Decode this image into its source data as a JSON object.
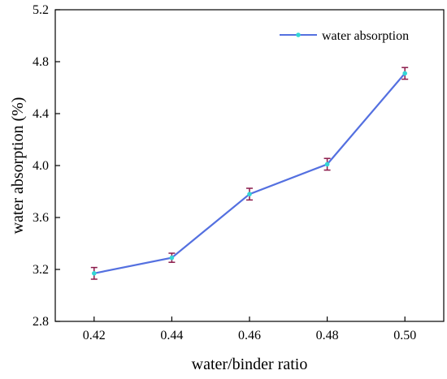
{
  "chart_data": {
    "type": "line",
    "title": "",
    "xlabel": "water/binder ratio",
    "ylabel": "water absorption (%)",
    "x": [
      0.42,
      0.44,
      0.46,
      0.48,
      0.5
    ],
    "x_ticks": [
      "0.42",
      "0.44",
      "0.46",
      "0.48",
      "0.50"
    ],
    "y_ticks": [
      "2.8",
      "3.2",
      "3.6",
      "4.0",
      "4.4",
      "4.8",
      "5.2"
    ],
    "xlim": [
      0.41,
      0.51
    ],
    "ylim": [
      2.8,
      5.2
    ],
    "grid": false,
    "legend_position": "top-right",
    "series": [
      {
        "name": "water absorption",
        "values": [
          3.17,
          3.29,
          3.78,
          4.01,
          4.71
        ],
        "error": [
          0.045,
          0.035,
          0.045,
          0.045,
          0.045
        ],
        "line_color": "#5470e0",
        "marker_color": "#33d6d6",
        "error_color": "#8b1a4a"
      }
    ]
  }
}
